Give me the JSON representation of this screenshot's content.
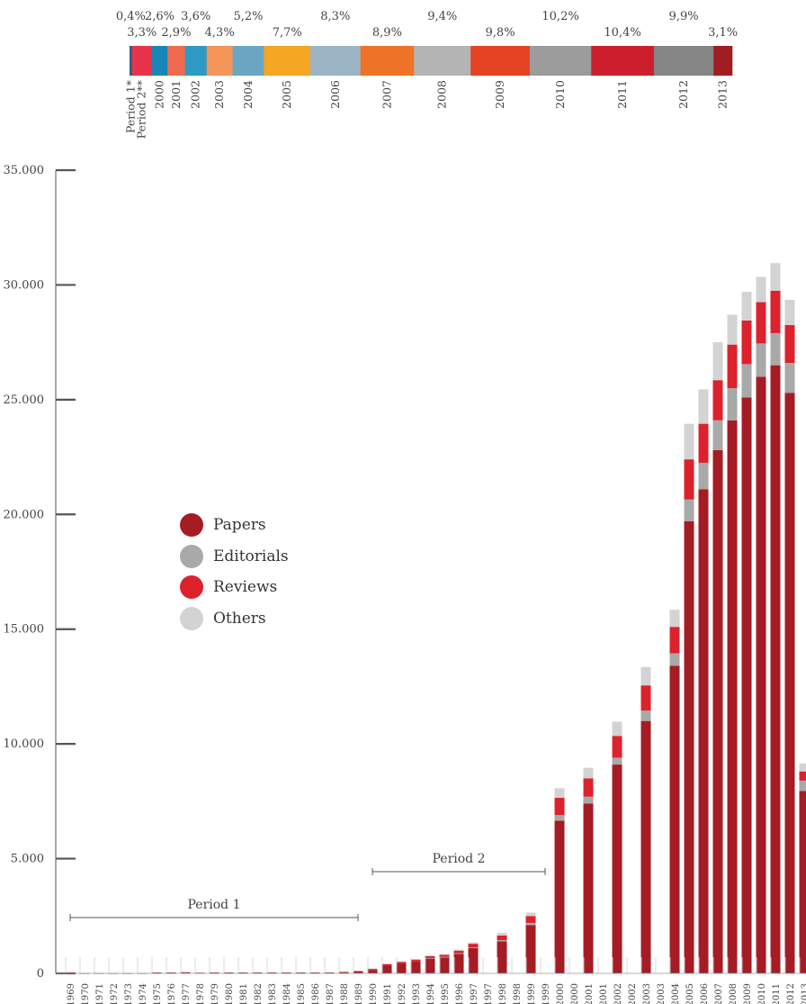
{
  "chart_data": [
    {
      "type": "bar",
      "orientation": "horizontal-stacked-share",
      "segments": [
        {
          "label": "Period 1*",
          "share": "0,4%",
          "value": 0.4,
          "color": "#2e5a8a"
        },
        {
          "label": "Period 2**",
          "share": "3,3%",
          "value": 3.3,
          "color": "#e8344a"
        },
        {
          "label": "2000",
          "share": "2,6%",
          "value": 2.6,
          "color": "#1a86b8"
        },
        {
          "label": "2001",
          "share": "2,9%",
          "value": 2.9,
          "color": "#ef6a4e"
        },
        {
          "label": "2002",
          "share": "3,6%",
          "value": 3.6,
          "color": "#2e9ac4"
        },
        {
          "label": "2003",
          "share": "4,3%",
          "value": 4.3,
          "color": "#f4955a"
        },
        {
          "label": "2004",
          "share": "5,2%",
          "value": 5.2,
          "color": "#6aa6c2"
        },
        {
          "label": "2005",
          "share": "7,7%",
          "value": 7.7,
          "color": "#f5a623"
        },
        {
          "label": "2006",
          "share": "8,3%",
          "value": 8.3,
          "color": "#9db4c5"
        },
        {
          "label": "2007",
          "share": "8,9%",
          "value": 8.9,
          "color": "#ee7326"
        },
        {
          "label": "2008",
          "share": "9,4%",
          "value": 9.4,
          "color": "#b4b4b4"
        },
        {
          "label": "2009",
          "share": "9,8%",
          "value": 9.8,
          "color": "#e54123"
        },
        {
          "label": "2010",
          "share": "10,2%",
          "value": 10.2,
          "color": "#9b9b9b"
        },
        {
          "label": "2011",
          "share": "10,4%",
          "value": 10.4,
          "color": "#cc1f2d"
        },
        {
          "label": "2012",
          "share": "9,9%",
          "value": 9.9,
          "color": "#858585"
        },
        {
          "label": "2013",
          "share": "3,1%",
          "value": 3.1,
          "color": "#a11d22"
        }
      ]
    },
    {
      "type": "bar",
      "stacked": true,
      "ylim": [
        0,
        35000
      ],
      "yticks": [
        0,
        5000,
        10000,
        15000,
        20000,
        25000,
        30000,
        35000
      ],
      "ytick_labels": [
        "0",
        "5.000",
        "10.000",
        "15.000",
        "20.000",
        "25.000",
        "30.000",
        "35.000"
      ],
      "series": [
        {
          "name": "Papers",
          "color": "#a51c24"
        },
        {
          "name": "Editorials",
          "color": "#a9a9a9"
        },
        {
          "name": "Reviews",
          "color": "#dc222c"
        },
        {
          "name": "Others",
          "color": "#d3d3d3"
        }
      ],
      "categories": [
        "1969",
        "1970",
        "1971",
        "1972",
        "1973",
        "1974",
        "1975",
        "1976",
        "1977",
        "1978",
        "1979",
        "1980",
        "1981",
        "1982",
        "1983",
        "1984",
        "1985",
        "1986",
        "1987",
        "1988",
        "1989",
        "1990",
        "1991",
        "1992",
        "1993",
        "1994",
        "1995",
        "1996",
        "1997",
        "1997",
        "1998",
        "1998",
        "1999",
        "1999",
        "2000",
        "2000",
        "2001",
        "2001",
        "2002",
        "2002",
        "2003",
        "2003",
        "2004",
        "2005",
        "2006",
        "2007",
        "2008",
        "2009",
        "2010",
        "2011",
        "2012",
        "2013"
      ],
      "data": [
        [
          40,
          0,
          0,
          0
        ],
        [
          10,
          0,
          0,
          0
        ],
        [
          10,
          0,
          0,
          0
        ],
        [
          10,
          0,
          0,
          0
        ],
        [
          10,
          0,
          0,
          0
        ],
        [
          10,
          0,
          0,
          0
        ],
        [
          40,
          0,
          0,
          0
        ],
        [
          40,
          0,
          0,
          0
        ],
        [
          50,
          0,
          0,
          0
        ],
        [
          30,
          0,
          0,
          0
        ],
        [
          40,
          0,
          0,
          0
        ],
        [
          40,
          0,
          0,
          0
        ],
        [
          40,
          0,
          0,
          0
        ],
        [
          40,
          0,
          0,
          0
        ],
        [
          40,
          0,
          0,
          0
        ],
        [
          40,
          0,
          0,
          0
        ],
        [
          40,
          0,
          0,
          0
        ],
        [
          40,
          0,
          0,
          0
        ],
        [
          40,
          0,
          0,
          0
        ],
        [
          60,
          0,
          0,
          0
        ],
        [
          100,
          0,
          0,
          0
        ],
        [
          150,
          0,
          50,
          20
        ],
        [
          350,
          0,
          60,
          20
        ],
        [
          430,
          0,
          70,
          30
        ],
        [
          520,
          0,
          80,
          30
        ],
        [
          650,
          20,
          80,
          40
        ],
        [
          700,
          20,
          90,
          40
        ],
        [
          850,
          30,
          110,
          50
        ],
        [
          1100,
          30,
          160,
          60
        ],
        [
          0,
          0,
          0,
          0
        ],
        [
          1400,
          50,
          200,
          120
        ],
        [
          0,
          0,
          0,
          0
        ],
        [
          2100,
          100,
          300,
          150
        ],
        [
          0,
          0,
          0,
          0
        ],
        [
          6650,
          250,
          750,
          420
        ],
        [
          0,
          0,
          0,
          0
        ],
        [
          7400,
          300,
          800,
          460
        ],
        [
          0,
          0,
          0,
          0
        ],
        [
          9100,
          300,
          950,
          620
        ],
        [
          0,
          0,
          0,
          0
        ],
        [
          11000,
          450,
          1100,
          800
        ],
        [
          0,
          0,
          0,
          0
        ],
        [
          13400,
          550,
          1150,
          750
        ],
        [
          19700,
          950,
          1750,
          1550
        ],
        [
          21100,
          1150,
          1700,
          1500
        ],
        [
          22800,
          1300,
          1750,
          1650
        ],
        [
          24100,
          1400,
          1900,
          1300
        ],
        [
          25100,
          1450,
          1900,
          1250
        ],
        [
          26000,
          1450,
          1800,
          1100
        ],
        [
          26500,
          1400,
          1850,
          1200
        ],
        [
          25300,
          1300,
          1650,
          1100
        ],
        [
          7950,
          450,
          400,
          350
        ]
      ],
      "annotations": [
        {
          "text": "Period 1",
          "from": "1969",
          "to": "1989"
        },
        {
          "text": "Period 2",
          "from": "1990",
          "to": "1999"
        }
      ],
      "legend_position": "left-center"
    }
  ]
}
